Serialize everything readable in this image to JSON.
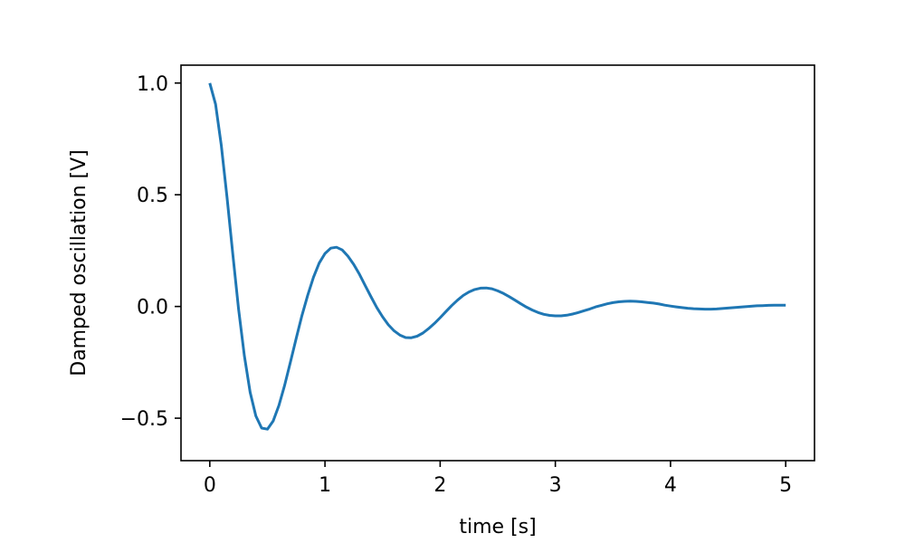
{
  "chart_data": {
    "type": "line",
    "title": "",
    "xlabel": "time [s]",
    "ylabel": "Damped oscillation [V]",
    "xlim": [
      -0.25,
      5.25
    ],
    "ylim": [
      -0.69,
      1.08
    ],
    "grid": false,
    "legend": "none",
    "xticks": [
      0,
      1,
      2,
      3,
      4,
      5
    ],
    "xtick_labels": [
      "0",
      "1",
      "2",
      "3",
      "4",
      "5"
    ],
    "yticks": [
      -0.5,
      0.0,
      0.5,
      1.0
    ],
    "ytick_labels": [
      "−0.5",
      "0.0",
      "0.5",
      "1.0"
    ],
    "series": [
      {
        "color": "#1f77b4",
        "x": [
          0.0,
          0.05,
          0.1,
          0.15,
          0.2,
          0.25,
          0.3,
          0.35,
          0.4,
          0.45,
          0.5,
          0.55,
          0.6,
          0.65,
          0.7,
          0.75,
          0.8,
          0.85,
          0.9,
          0.95,
          1.0,
          1.05,
          1.1,
          1.15,
          1.2,
          1.25,
          1.3,
          1.35,
          1.4,
          1.45,
          1.5,
          1.55,
          1.6,
          1.65,
          1.7,
          1.75,
          1.8,
          1.85,
          1.9,
          1.95,
          2.0,
          2.05,
          2.1,
          2.15,
          2.2,
          2.25,
          2.3,
          2.35,
          2.4,
          2.45,
          2.5,
          2.55,
          2.6,
          2.65,
          2.7,
          2.75,
          2.8,
          2.85,
          2.9,
          2.95,
          3.0,
          3.05,
          3.1,
          3.15,
          3.2,
          3.25,
          3.3,
          3.35,
          3.4,
          3.45,
          3.5,
          3.55,
          3.6,
          3.65,
          3.7,
          3.75,
          3.8,
          3.85,
          3.9,
          3.95,
          4.0,
          4.05,
          4.1,
          4.15,
          4.2,
          4.25,
          4.3,
          4.35,
          4.4,
          4.45,
          4.5,
          4.55,
          4.6,
          4.65,
          4.7,
          4.75,
          4.8,
          4.85,
          4.9,
          4.95,
          5.0
        ],
        "y": [
          1.0,
          0.905,
          0.722,
          0.487,
          0.232,
          -0.011,
          -0.22,
          -0.384,
          -0.49,
          -0.544,
          -0.549,
          -0.513,
          -0.443,
          -0.353,
          -0.249,
          -0.143,
          -0.041,
          0.05,
          0.131,
          0.194,
          0.237,
          0.261,
          0.265,
          0.253,
          0.225,
          0.188,
          0.143,
          0.093,
          0.043,
          -0.005,
          -0.046,
          -0.082,
          -0.109,
          -0.128,
          -0.139,
          -0.14,
          -0.133,
          -0.119,
          -0.099,
          -0.076,
          -0.05,
          -0.023,
          0.004,
          0.028,
          0.049,
          0.065,
          0.076,
          0.082,
          0.083,
          0.079,
          0.07,
          0.058,
          0.044,
          0.028,
          0.012,
          -0.003,
          -0.016,
          -0.027,
          -0.035,
          -0.04,
          -0.042,
          -0.042,
          -0.039,
          -0.034,
          -0.027,
          -0.019,
          -0.011,
          -0.002,
          0.005,
          0.012,
          0.017,
          0.021,
          0.023,
          0.024,
          0.023,
          0.021,
          0.018,
          0.015,
          0.011,
          0.006,
          0.002,
          -0.002,
          -0.005,
          -0.008,
          -0.01,
          -0.011,
          -0.012,
          -0.012,
          -0.011,
          -0.009,
          -0.007,
          -0.005,
          -0.003,
          -0.001,
          0.001,
          0.003,
          0.004,
          0.005,
          0.006,
          0.006,
          0.006
        ]
      }
    ]
  }
}
